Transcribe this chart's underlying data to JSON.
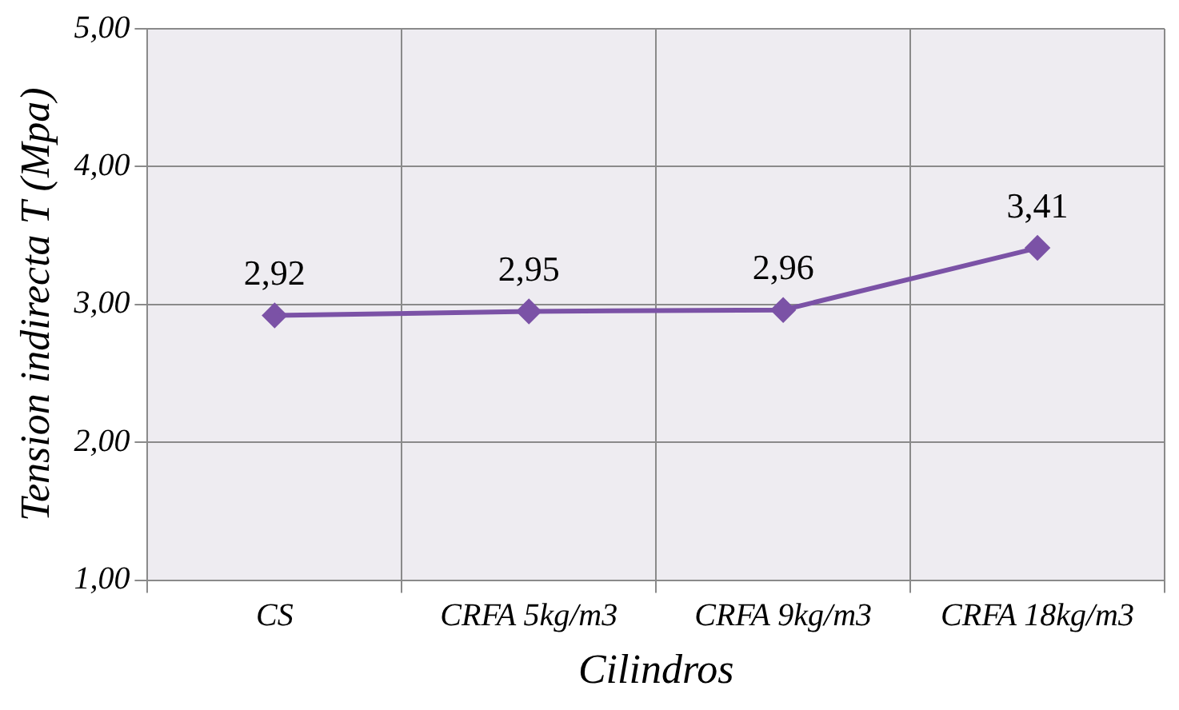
{
  "chart_data": {
    "type": "line",
    "xlabel": "Cilindros",
    "ylabel": "Tension indirecta T (Mpa)",
    "categories": [
      "CS",
      "CRFA 5kg/m3",
      "CRFA 9kg/m3",
      "CRFA 18kg/m3"
    ],
    "series": [
      {
        "color": "#7b52a6",
        "values": [
          2.92,
          2.95,
          2.96,
          3.41
        ],
        "value_labels": [
          "2,92",
          "2,95",
          "2,96",
          "3,41"
        ]
      }
    ],
    "ylim": [
      1,
      5
    ],
    "yticks": [
      {
        "value": 1,
        "label": "1,00"
      },
      {
        "value": 2,
        "label": "2,00"
      },
      {
        "value": 3,
        "label": "3,00"
      },
      {
        "value": 4,
        "label": "4,00"
      },
      {
        "value": 5,
        "label": "5,00"
      }
    ],
    "grid": true,
    "legend": false,
    "marker": "diamond",
    "line_style": "solid"
  }
}
